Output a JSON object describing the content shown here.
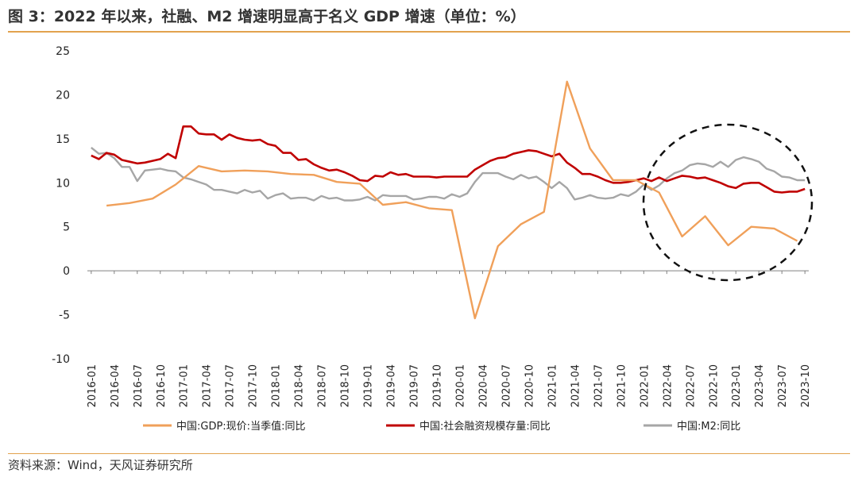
{
  "header": {
    "title": "图 3：2022 年以来，社融、M2 增速明显高于名义 GDP 增速（单位：%）"
  },
  "footer": {
    "source": "资料来源：Wind，天风证券研究所"
  },
  "colors": {
    "gdp": "#F0A05A",
    "tsf": "#C00000",
    "m2": "#A6A6A6",
    "accent": "#E2A24E"
  },
  "chart_data": {
    "type": "line",
    "x": [
      "2016-01",
      "2016-02",
      "2016-03",
      "2016-04",
      "2016-05",
      "2016-06",
      "2016-07",
      "2016-08",
      "2016-09",
      "2016-10",
      "2016-11",
      "2016-12",
      "2017-01",
      "2017-02",
      "2017-03",
      "2017-04",
      "2017-05",
      "2017-06",
      "2017-07",
      "2017-08",
      "2017-09",
      "2017-10",
      "2017-11",
      "2017-12",
      "2018-01",
      "2018-02",
      "2018-03",
      "2018-04",
      "2018-05",
      "2018-06",
      "2018-07",
      "2018-08",
      "2018-09",
      "2018-10",
      "2018-11",
      "2018-12",
      "2019-01",
      "2019-02",
      "2019-03",
      "2019-04",
      "2019-05",
      "2019-06",
      "2019-07",
      "2019-08",
      "2019-09",
      "2019-10",
      "2019-11",
      "2019-12",
      "2020-01",
      "2020-02",
      "2020-03",
      "2020-04",
      "2020-05",
      "2020-06",
      "2020-07",
      "2020-08",
      "2020-09",
      "2020-10",
      "2020-11",
      "2020-12",
      "2021-01",
      "2021-02",
      "2021-03",
      "2021-04",
      "2021-05",
      "2021-06",
      "2021-07",
      "2021-08",
      "2021-09",
      "2021-10",
      "2021-11",
      "2021-12",
      "2022-01",
      "2022-02",
      "2022-03",
      "2022-04",
      "2022-05",
      "2022-06",
      "2022-07",
      "2022-08",
      "2022-09",
      "2022-10",
      "2022-11",
      "2022-12",
      "2023-01",
      "2023-02",
      "2023-03",
      "2023-04",
      "2023-05",
      "2023-06",
      "2023-07",
      "2023-08",
      "2023-09",
      "2023-10"
    ],
    "x_tick_labels": [
      "2016-01",
      "2016-04",
      "2016-07",
      "2016-10",
      "2017-01",
      "2017-04",
      "2017-07",
      "2017-10",
      "2018-01",
      "2018-04",
      "2018-07",
      "2018-10",
      "2019-01",
      "2019-04",
      "2019-07",
      "2019-10",
      "2020-01",
      "2020-04",
      "2020-07",
      "2020-10",
      "2021-01",
      "2021-04",
      "2021-07",
      "2021-10",
      "2022-01",
      "2022-04",
      "2022-07",
      "2022-10",
      "2023-01",
      "2023-04",
      "2023-07",
      "2023-10"
    ],
    "ylim": [
      -10,
      25
    ],
    "yticks": [
      -10,
      -5,
      0,
      5,
      10,
      15,
      20,
      25
    ],
    "legend_position": "bottom",
    "annotation": "dashed-circle around 2022-2023",
    "series": [
      {
        "name": "中国:GDP:现价:当季值:同比",
        "color_key": "gdp",
        "points": [
          [
            "2016-03",
            7.4
          ],
          [
            "2016-06",
            7.7
          ],
          [
            "2016-09",
            8.2
          ],
          [
            "2016-12",
            9.8
          ],
          [
            "2017-03",
            11.9
          ],
          [
            "2017-06",
            11.3
          ],
          [
            "2017-09",
            11.4
          ],
          [
            "2017-12",
            11.3
          ],
          [
            "2018-03",
            11.0
          ],
          [
            "2018-06",
            10.9
          ],
          [
            "2018-09",
            10.1
          ],
          [
            "2018-12",
            9.9
          ],
          [
            "2019-03",
            7.5
          ],
          [
            "2019-06",
            7.8
          ],
          [
            "2019-09",
            7.1
          ],
          [
            "2019-12",
            6.9
          ],
          [
            "2020-03",
            -5.4
          ],
          [
            "2020-06",
            2.8
          ],
          [
            "2020-09",
            5.3
          ],
          [
            "2020-12",
            6.7
          ],
          [
            "2021-03",
            21.5
          ],
          [
            "2021-06",
            13.9
          ],
          [
            "2021-09",
            10.3
          ],
          [
            "2021-12",
            10.3
          ],
          [
            "2022-03",
            8.9
          ],
          [
            "2022-06",
            3.9
          ],
          [
            "2022-09",
            6.2
          ],
          [
            "2022-12",
            2.9
          ],
          [
            "2023-03",
            5.0
          ],
          [
            "2023-06",
            4.8
          ],
          [
            "2023-09",
            3.4
          ]
        ]
      },
      {
        "name": "中国:社会融资规模存量:同比",
        "color_key": "tsf",
        "values": [
          13.1,
          12.7,
          13.4,
          13.2,
          12.6,
          12.4,
          12.2,
          12.3,
          12.5,
          12.7,
          13.3,
          12.8,
          16.4,
          16.4,
          15.6,
          15.5,
          15.5,
          14.9,
          15.5,
          15.1,
          14.9,
          14.8,
          14.9,
          14.4,
          14.2,
          13.4,
          13.4,
          12.6,
          12.7,
          12.1,
          11.7,
          11.4,
          11.5,
          11.2,
          10.8,
          10.3,
          10.2,
          10.8,
          10.7,
          11.2,
          10.9,
          11.0,
          10.7,
          10.7,
          10.7,
          10.6,
          10.7,
          10.7,
          10.7,
          10.7,
          11.5,
          12.0,
          12.5,
          12.8,
          12.9,
          13.3,
          13.5,
          13.7,
          13.6,
          13.3,
          13.0,
          13.3,
          12.3,
          11.7,
          11.0,
          11.0,
          10.7,
          10.3,
          10.0,
          10.0,
          10.1,
          10.3,
          10.5,
          10.2,
          10.6,
          10.2,
          10.5,
          10.8,
          10.7,
          10.5,
          10.6,
          10.3,
          10.0,
          9.6,
          9.4,
          9.9,
          10.0,
          10.0,
          9.5,
          9.0,
          8.9,
          9.0,
          9.0,
          9.3
        ]
      },
      {
        "name": "中国:M2:同比",
        "color_key": "m2",
        "values": [
          14.0,
          13.3,
          13.4,
          12.8,
          11.8,
          11.8,
          10.2,
          11.4,
          11.5,
          11.6,
          11.4,
          11.3,
          10.6,
          10.4,
          10.1,
          9.8,
          9.2,
          9.2,
          9.0,
          8.8,
          9.2,
          8.9,
          9.1,
          8.2,
          8.6,
          8.8,
          8.2,
          8.3,
          8.3,
          8.0,
          8.5,
          8.2,
          8.3,
          8.0,
          8.0,
          8.1,
          8.4,
          8.0,
          8.6,
          8.5,
          8.5,
          8.5,
          8.1,
          8.2,
          8.4,
          8.4,
          8.2,
          8.7,
          8.4,
          8.8,
          10.1,
          11.1,
          11.1,
          11.1,
          10.7,
          10.4,
          10.9,
          10.5,
          10.7,
          10.1,
          9.4,
          10.1,
          9.4,
          8.1,
          8.3,
          8.6,
          8.3,
          8.2,
          8.3,
          8.7,
          8.5,
          9.0,
          9.8,
          9.2,
          9.7,
          10.5,
          11.1,
          11.4,
          12.0,
          12.2,
          12.1,
          11.8,
          12.4,
          11.8,
          12.6,
          12.9,
          12.7,
          12.4,
          11.6,
          11.3,
          10.7,
          10.6,
          10.3,
          10.3
        ]
      }
    ]
  }
}
